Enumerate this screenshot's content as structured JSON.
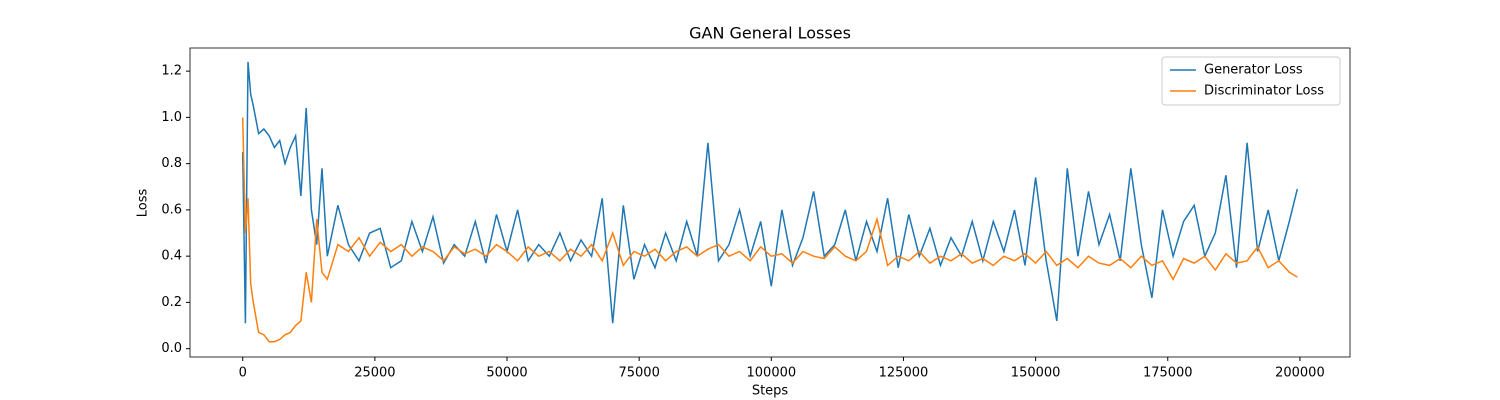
{
  "chart_data": {
    "type": "line",
    "title": "GAN General Losses",
    "x_label": "Steps",
    "y_label": "Loss",
    "x": [
      0,
      500,
      1000,
      1500,
      2000,
      3000,
      4000,
      5000,
      6000,
      7000,
      8000,
      9000,
      10000,
      11000,
      12000,
      13000,
      14000,
      15000,
      16000,
      18000,
      20000,
      22000,
      24000,
      26000,
      28000,
      30000,
      32000,
      34000,
      36000,
      38000,
      40000,
      42000,
      44000,
      46000,
      48000,
      50000,
      52000,
      54000,
      56000,
      58000,
      60000,
      62000,
      64000,
      66000,
      68000,
      70000,
      72000,
      74000,
      76000,
      78000,
      80000,
      82000,
      84000,
      86000,
      88000,
      90000,
      92000,
      94000,
      96000,
      98000,
      100000,
      102000,
      104000,
      106000,
      108000,
      110000,
      112000,
      114000,
      116000,
      118000,
      120000,
      122000,
      124000,
      126000,
      128000,
      130000,
      132000,
      134000,
      136000,
      138000,
      140000,
      142000,
      144000,
      146000,
      148000,
      150000,
      152000,
      154000,
      156000,
      158000,
      160000,
      162000,
      164000,
      166000,
      168000,
      170000,
      172000,
      174000,
      176000,
      178000,
      180000,
      182000,
      184000,
      186000,
      188000,
      190000,
      192000,
      194000,
      196000,
      198000,
      199500
    ],
    "series": [
      {
        "name": "Generator Loss",
        "color": "#1f77b4",
        "values": [
          0.85,
          0.11,
          1.24,
          1.1,
          1.05,
          0.93,
          0.95,
          0.92,
          0.87,
          0.9,
          0.8,
          0.87,
          0.92,
          0.66,
          1.04,
          0.6,
          0.45,
          0.78,
          0.4,
          0.62,
          0.45,
          0.38,
          0.5,
          0.52,
          0.35,
          0.38,
          0.55,
          0.42,
          0.57,
          0.37,
          0.45,
          0.4,
          0.55,
          0.37,
          0.58,
          0.42,
          0.6,
          0.38,
          0.45,
          0.4,
          0.5,
          0.38,
          0.47,
          0.4,
          0.65,
          0.11,
          0.62,
          0.3,
          0.45,
          0.35,
          0.5,
          0.38,
          0.55,
          0.4,
          0.89,
          0.38,
          0.45,
          0.6,
          0.4,
          0.55,
          0.27,
          0.6,
          0.36,
          0.48,
          0.68,
          0.4,
          0.45,
          0.6,
          0.38,
          0.55,
          0.42,
          0.65,
          0.35,
          0.58,
          0.4,
          0.52,
          0.36,
          0.48,
          0.4,
          0.55,
          0.38,
          0.55,
          0.42,
          0.6,
          0.36,
          0.74,
          0.38,
          0.12,
          0.78,
          0.4,
          0.68,
          0.45,
          0.58,
          0.38,
          0.78,
          0.45,
          0.22,
          0.6,
          0.4,
          0.55,
          0.62,
          0.4,
          0.5,
          0.75,
          0.35,
          0.89,
          0.42,
          0.6,
          0.38,
          0.55,
          0.69
        ]
      },
      {
        "name": "Discriminator Loss",
        "color": "#ff7f0e",
        "values": [
          1.0,
          0.5,
          0.65,
          0.28,
          0.2,
          0.07,
          0.06,
          0.03,
          0.03,
          0.04,
          0.06,
          0.07,
          0.1,
          0.12,
          0.33,
          0.2,
          0.56,
          0.33,
          0.3,
          0.45,
          0.42,
          0.48,
          0.4,
          0.46,
          0.42,
          0.45,
          0.4,
          0.44,
          0.42,
          0.38,
          0.44,
          0.41,
          0.43,
          0.4,
          0.45,
          0.42,
          0.38,
          0.44,
          0.4,
          0.42,
          0.38,
          0.43,
          0.4,
          0.45,
          0.38,
          0.5,
          0.36,
          0.42,
          0.4,
          0.43,
          0.38,
          0.42,
          0.44,
          0.4,
          0.43,
          0.45,
          0.4,
          0.42,
          0.38,
          0.44,
          0.4,
          0.41,
          0.37,
          0.42,
          0.4,
          0.39,
          0.44,
          0.4,
          0.38,
          0.42,
          0.56,
          0.36,
          0.4,
          0.38,
          0.42,
          0.37,
          0.4,
          0.38,
          0.41,
          0.37,
          0.39,
          0.36,
          0.4,
          0.38,
          0.41,
          0.37,
          0.42,
          0.36,
          0.39,
          0.35,
          0.4,
          0.37,
          0.36,
          0.39,
          0.35,
          0.4,
          0.36,
          0.38,
          0.3,
          0.39,
          0.37,
          0.4,
          0.34,
          0.41,
          0.37,
          0.38,
          0.44,
          0.35,
          0.38,
          0.33,
          0.31
        ]
      }
    ],
    "xlim": [
      -9975,
      209475
    ],
    "xticks": [
      0,
      25000,
      50000,
      75000,
      100000,
      125000,
      150000,
      175000,
      200000
    ],
    "ylim": [
      -0.036,
      1.3
    ],
    "yticks": [
      {
        "value": 0,
        "label": "0.0"
      },
      0.2,
      0.4,
      0.6,
      0.8,
      {
        "value": 1,
        "label": "1.0"
      },
      1.2
    ],
    "legend": "upper right"
  }
}
